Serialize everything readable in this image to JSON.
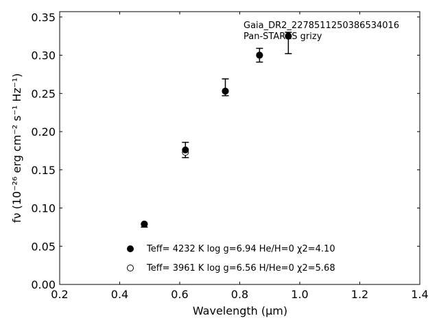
{
  "chart_data": {
    "type": "scatter",
    "title": "",
    "annotation": [
      "Gaia_DR2_2278511250386534016",
      "Pan-STARRS grizy"
    ],
    "xlabel": "Wavelength (μm)",
    "ylabel": "fν (10⁻²⁶ erg cm⁻² s⁻¹ Hz⁻¹)",
    "xlim": [
      0.2,
      1.4
    ],
    "ylim": [
      0.0,
      0.357
    ],
    "xticks": [
      "0.2",
      "0.4",
      "0.6",
      "0.8",
      "1.0",
      "1.2",
      "1.4"
    ],
    "yticks": [
      "0.00",
      "0.05",
      "0.10",
      "0.15",
      "0.20",
      "0.25",
      "0.30",
      "0.35"
    ],
    "grid": false,
    "legend_position": "bottom-center",
    "series": [
      {
        "name": "Teff= 4232 K log g=6.94 He/H=0 χ2=4.10",
        "marker": "filled-circle",
        "color": "#000000",
        "x": [
          0.482,
          0.619,
          0.752,
          0.866,
          0.962
        ],
        "y": [
          0.079,
          0.176,
          0.253,
          0.3,
          0.325
        ]
      },
      {
        "name": "Teff= 3961 K log g=6.56 H/He=0 χ2=5.68",
        "marker": "open-circle",
        "color": "#000000",
        "x": [
          0.482,
          0.619,
          0.752,
          0.866,
          0.962
        ],
        "y": [
          0.079,
          0.173,
          0.253,
          0.3,
          0.325
        ]
      }
    ],
    "errorbars": {
      "color": "#000000",
      "x": [
        0.482,
        0.619,
        0.752,
        0.866,
        0.962
      ],
      "y": [
        0.077,
        0.176,
        0.258,
        0.3,
        0.316
      ],
      "yerr": [
        0.002,
        0.01,
        0.011,
        0.009,
        0.014
      ]
    }
  }
}
